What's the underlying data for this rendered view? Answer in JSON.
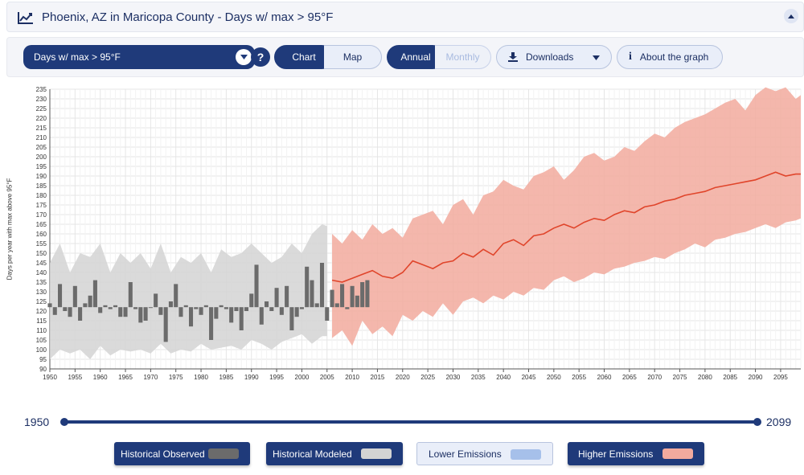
{
  "header": {
    "title": "Phoenix, AZ in Maricopa County - Days w/ max > 95°F",
    "icon": "line-chart-icon"
  },
  "toolbar": {
    "variable_select": "Days w/ max > 95°F",
    "help_label": "?",
    "chart_label": "Chart",
    "map_label": "Map",
    "annual_label": "Annual",
    "monthly_label": "Monthly",
    "downloads_label": "Downloads",
    "about_label": "About the graph"
  },
  "range": {
    "start": "1950",
    "end": "2099"
  },
  "legend": {
    "historical_observed": "Historical Observed",
    "historical_modeled": "Historical Modeled",
    "lower_emissions": "Lower Emissions",
    "higher_emissions": "Higher Emissions"
  },
  "colors": {
    "navy": "#1f3a7a",
    "observed": "#6b6b6b",
    "modeled": "#d3d3d3",
    "lower": "#a6c0ea",
    "higher": "#f2aa9e",
    "higher_line": "#e0452b"
  },
  "chart_data": {
    "type": "bar",
    "ylabel": "Days per year with max above 95°F",
    "ylim": [
      90,
      235
    ],
    "xlim": [
      1950,
      2099
    ],
    "baseline": 122,
    "y_ticks": [
      90,
      95,
      100,
      105,
      110,
      115,
      120,
      125,
      130,
      135,
      140,
      145,
      150,
      155,
      160,
      165,
      170,
      175,
      180,
      185,
      190,
      195,
      200,
      205,
      210,
      215,
      220,
      225,
      230,
      235
    ],
    "x_ticks": [
      1950,
      1955,
      1960,
      1965,
      1970,
      1975,
      1980,
      1985,
      1990,
      1995,
      2000,
      2005,
      2010,
      2015,
      2020,
      2025,
      2030,
      2035,
      2040,
      2045,
      2050,
      2055,
      2060,
      2065,
      2070,
      2075,
      2080,
      2085,
      2090,
      2095
    ],
    "historical_observed": {
      "x": [
        1950,
        1951,
        1952,
        1953,
        1954,
        1955,
        1956,
        1957,
        1958,
        1959,
        1960,
        1961,
        1962,
        1963,
        1964,
        1965,
        1966,
        1967,
        1968,
        1969,
        1970,
        1971,
        1972,
        1973,
        1974,
        1975,
        1976,
        1977,
        1978,
        1979,
        1980,
        1981,
        1982,
        1983,
        1984,
        1985,
        1986,
        1987,
        1988,
        1989,
        1990,
        1991,
        1992,
        1993,
        1994,
        1995,
        1996,
        1997,
        1998,
        1999,
        2000,
        2001,
        2002,
        2003,
        2004,
        2005,
        2006,
        2007,
        2008,
        2009,
        2010,
        2011,
        2012,
        2013
      ],
      "values": [
        124,
        118,
        134,
        120,
        117,
        133,
        115,
        124,
        128,
        136,
        119,
        123,
        121,
        123,
        117,
        117,
        135,
        121,
        114,
        115,
        122,
        129,
        118,
        104,
        125,
        134,
        117,
        123,
        112,
        121,
        118,
        123,
        105,
        116,
        123,
        121,
        114,
        120,
        110,
        120,
        129,
        144,
        113,
        125,
        120,
        132,
        118,
        133,
        110,
        117,
        121,
        143,
        136,
        124,
        145,
        115,
        131,
        124,
        134,
        121,
        133,
        128,
        135,
        136
      ]
    },
    "historical_modeled": {
      "x": [
        1950,
        1952,
        1954,
        1956,
        1958,
        1960,
        1962,
        1964,
        1966,
        1968,
        1970,
        1972,
        1974,
        1976,
        1978,
        1980,
        1982,
        1984,
        1986,
        1988,
        1990,
        1992,
        1994,
        1996,
        1998,
        2000,
        2002,
        2004,
        2005
      ],
      "upper": [
        145,
        155,
        140,
        150,
        148,
        155,
        140,
        150,
        145,
        150,
        142,
        155,
        140,
        148,
        145,
        150,
        140,
        152,
        148,
        150,
        155,
        150,
        145,
        148,
        155,
        150,
        160,
        165,
        164
      ],
      "lower": [
        95,
        100,
        98,
        100,
        95,
        102,
        97,
        100,
        99,
        100,
        98,
        103,
        98,
        100,
        99,
        103,
        100,
        101,
        102,
        100,
        105,
        103,
        100,
        104,
        106,
        108,
        103,
        107,
        107
      ]
    },
    "higher_emissions": {
      "x": [
        2006,
        2008,
        2010,
        2012,
        2014,
        2016,
        2018,
        2020,
        2022,
        2024,
        2026,
        2028,
        2030,
        2032,
        2034,
        2036,
        2038,
        2040,
        2042,
        2044,
        2046,
        2048,
        2050,
        2052,
        2054,
        2056,
        2058,
        2060,
        2062,
        2064,
        2066,
        2068,
        2070,
        2072,
        2074,
        2076,
        2078,
        2080,
        2082,
        2084,
        2086,
        2088,
        2090,
        2092,
        2094,
        2096,
        2098,
        2099
      ],
      "mean": [
        136,
        135,
        137,
        139,
        141,
        138,
        137,
        140,
        146,
        144,
        142,
        145,
        146,
        150,
        148,
        152,
        149,
        155,
        157,
        154,
        159,
        160,
        163,
        165,
        163,
        166,
        168,
        167,
        170,
        172,
        171,
        174,
        175,
        177,
        178,
        180,
        181,
        182,
        184,
        185,
        186,
        187,
        188,
        190,
        192,
        190,
        191,
        191
      ],
      "upper": [
        160,
        155,
        162,
        157,
        165,
        160,
        163,
        158,
        168,
        170,
        172,
        165,
        175,
        178,
        170,
        180,
        182,
        188,
        185,
        183,
        190,
        192,
        195,
        188,
        193,
        200,
        202,
        198,
        200,
        205,
        203,
        208,
        212,
        210,
        215,
        218,
        220,
        222,
        225,
        228,
        230,
        224,
        232,
        236,
        234,
        236,
        230,
        232
      ],
      "lower": [
        106,
        110,
        102,
        115,
        108,
        112,
        107,
        118,
        115,
        120,
        117,
        124,
        118,
        125,
        127,
        124,
        128,
        126,
        130,
        128,
        132,
        131,
        136,
        138,
        135,
        137,
        140,
        139,
        142,
        143,
        145,
        146,
        148,
        147,
        150,
        152,
        155,
        153,
        157,
        158,
        160,
        161,
        163,
        165,
        163,
        166,
        167,
        168
      ]
    }
  }
}
